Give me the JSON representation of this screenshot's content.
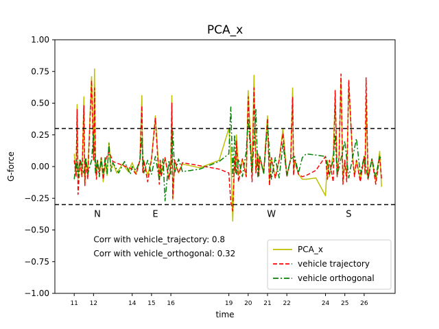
{
  "chart_data": {
    "type": "line",
    "title": "PCA_x",
    "xlabel": "time",
    "ylabel": "G-force",
    "xlim": [
      10.0,
      27.6
    ],
    "ylim": [
      -1.0,
      1.0
    ],
    "x_ticks": [
      11,
      12,
      14,
      15,
      16,
      19,
      20,
      21,
      22,
      24,
      25,
      26
    ],
    "y_ticks": [
      -1.0,
      -0.75,
      -0.5,
      -0.25,
      0.0,
      0.25,
      0.5,
      0.75,
      1.0
    ],
    "y_tick_labels": [
      "−1.00",
      "−0.75",
      "−0.50",
      "−0.25",
      "0.00",
      "0.25",
      "0.50",
      "0.75",
      "1.00"
    ],
    "grid": false,
    "legend_position": "bottom-right",
    "hlines": [
      {
        "y": 0.3,
        "style": "dashed",
        "color": "#000000"
      },
      {
        "y": -0.3,
        "style": "dashed",
        "color": "#000000"
      }
    ],
    "region_labels": [
      {
        "text": "N",
        "x": 12.2,
        "y": -0.37
      },
      {
        "text": "E",
        "x": 15.2,
        "y": -0.37
      },
      {
        "text": "W",
        "x": 21.2,
        "y": -0.37
      },
      {
        "text": "S",
        "x": 25.2,
        "y": -0.37
      }
    ],
    "annotations": [
      {
        "text": "Corr with vehicle_trajectory: 0.8",
        "x": 12.0,
        "y": -0.57
      },
      {
        "text": "Corr with vehicle_orthogonal: 0.32",
        "x": 12.0,
        "y": -0.68
      }
    ],
    "series": [
      {
        "name": "PCA_x",
        "color": "#bfbf00",
        "style": "solid",
        "x": [
          11.0,
          11.1,
          11.15,
          11.2,
          11.3,
          11.4,
          11.5,
          11.55,
          11.6,
          11.7,
          11.9,
          12.0,
          12.05,
          12.1,
          12.15,
          12.2,
          12.3,
          12.4,
          12.5,
          12.6,
          12.7,
          12.8,
          12.9,
          13.0,
          13.2,
          13.5,
          13.8,
          14.0,
          14.2,
          14.4,
          14.5,
          14.55,
          14.6,
          14.8,
          15.0,
          15.2,
          15.4,
          15.45,
          15.5,
          15.7,
          15.9,
          16.0,
          16.05,
          16.1,
          16.2,
          16.4,
          16.6,
          17.5,
          18.5,
          19.0,
          19.1,
          19.2,
          19.3,
          19.35,
          19.4,
          19.5,
          19.7,
          19.9,
          20.0,
          20.2,
          20.3,
          20.4,
          20.5,
          20.55,
          20.6,
          20.8,
          21.0,
          21.1,
          21.2,
          21.4,
          21.6,
          21.8,
          22.0,
          22.2,
          22.3,
          22.35,
          22.4,
          22.6,
          22.8,
          23.0,
          23.5,
          24.0,
          24.1,
          24.2,
          24.4,
          24.5,
          24.6,
          24.7,
          24.8,
          24.9,
          25.0,
          25.1,
          25.2,
          25.4,
          25.5,
          25.6,
          25.8,
          26.0,
          26.05,
          26.1,
          26.2,
          26.4,
          26.6,
          26.8,
          26.9
        ],
        "values": [
          0.1,
          -0.05,
          0.49,
          -0.1,
          0.05,
          -0.08,
          0.55,
          -0.15,
          0.06,
          -0.05,
          0.71,
          0.05,
          0.77,
          0.02,
          -0.08,
          0.05,
          -0.04,
          0.07,
          -0.12,
          0.04,
          -0.07,
          0.19,
          -0.02,
          0.03,
          -0.05,
          0.02,
          -0.04,
          0.03,
          -0.06,
          0.05,
          0.56,
          -0.04,
          0.05,
          -0.07,
          0.06,
          0.4,
          -0.08,
          0.05,
          -0.06,
          0.07,
          -0.1,
          0.03,
          0.56,
          -0.26,
          0.05,
          -0.05,
          0.02,
          -0.01,
          0.05,
          0.3,
          0.1,
          -0.43,
          0.08,
          -0.05,
          0.25,
          -0.07,
          0.06,
          -0.08,
          0.6,
          -0.05,
          0.72,
          -0.04,
          0.1,
          -0.06,
          0.08,
          -0.05,
          0.4,
          -0.12,
          0.07,
          -0.09,
          0.05,
          0.3,
          -0.07,
          0.06,
          0.62,
          -0.05,
          0.05,
          -0.06,
          -0.1,
          -0.1,
          -0.09,
          -0.23,
          0.05,
          -0.08,
          0.1,
          0.55,
          -0.05,
          0.08,
          0.7,
          -0.12,
          0.05,
          -0.08,
          0.65,
          0.07,
          -0.06,
          0.05,
          -0.1,
          0.08,
          -0.06,
          0.55,
          -0.08,
          0.06,
          -0.12,
          0.12,
          -0.16
        ]
      },
      {
        "name": "vehicle trajectory",
        "color": "#ff0000",
        "style": "dashed",
        "x": [
          11.0,
          11.1,
          11.15,
          11.2,
          11.3,
          11.4,
          11.5,
          11.55,
          11.6,
          11.7,
          11.9,
          12.0,
          12.05,
          12.1,
          12.15,
          12.2,
          12.3,
          12.4,
          12.5,
          12.6,
          12.8,
          13.0,
          14.0,
          14.2,
          14.4,
          14.5,
          14.55,
          14.6,
          14.8,
          15.0,
          15.2,
          15.4,
          15.45,
          15.5,
          15.7,
          15.9,
          16.0,
          16.05,
          16.1,
          16.2,
          16.4,
          16.6,
          17.0,
          18.5,
          19.0,
          19.1,
          19.2,
          19.3,
          19.35,
          19.4,
          19.5,
          19.7,
          19.9,
          20.0,
          20.2,
          20.3,
          20.4,
          20.5,
          20.55,
          20.6,
          20.8,
          21.0,
          21.1,
          21.2,
          21.4,
          21.6,
          21.8,
          22.0,
          22.2,
          22.3,
          22.35,
          22.4,
          22.6,
          22.8,
          23.0,
          23.5,
          24.0,
          24.1,
          24.2,
          24.4,
          24.5,
          24.6,
          24.7,
          24.8,
          24.9,
          25.0,
          25.1,
          25.2,
          25.4,
          25.5,
          25.6,
          25.8,
          26.0,
          26.05,
          26.1,
          26.2,
          26.4,
          26.6,
          26.8,
          26.9
        ],
        "values": [
          0.05,
          -0.08,
          0.45,
          -0.22,
          0.05,
          -0.08,
          0.48,
          -0.15,
          0.06,
          -0.1,
          0.68,
          0.05,
          0.62,
          0.02,
          -0.1,
          0.05,
          -0.06,
          0.07,
          -0.1,
          0.04,
          0.12,
          0.04,
          -0.02,
          -0.06,
          0.05,
          0.48,
          -0.05,
          0.05,
          -0.12,
          0.06,
          0.38,
          -0.14,
          0.05,
          -0.08,
          0.07,
          -0.1,
          0.03,
          0.5,
          -0.25,
          0.05,
          -0.05,
          0.03,
          0.02,
          -0.02,
          -0.05,
          -0.28,
          -0.35,
          0.08,
          -0.05,
          0.2,
          -0.12,
          0.06,
          -0.08,
          0.55,
          -0.12,
          0.62,
          -0.05,
          0.1,
          -0.08,
          0.08,
          -0.05,
          0.38,
          -0.15,
          0.07,
          -0.09,
          0.05,
          0.26,
          -0.08,
          0.06,
          0.55,
          -0.07,
          0.05,
          -0.06,
          -0.08,
          -0.07,
          -0.03,
          0.08,
          -0.1,
          0.05,
          -0.12,
          0.6,
          -0.08,
          0.08,
          0.73,
          -0.14,
          0.05,
          -0.12,
          0.68,
          0.07,
          -0.08,
          0.05,
          -0.12,
          0.08,
          -0.06,
          0.7,
          -0.1,
          0.06,
          -0.14,
          0.08,
          -0.1
        ]
      },
      {
        "name": "vehicle orthogonal",
        "color": "#008000",
        "style": "dashdot",
        "x": [
          11.0,
          11.1,
          11.2,
          11.3,
          11.5,
          11.6,
          11.7,
          11.9,
          12.0,
          12.1,
          12.2,
          12.3,
          12.4,
          12.5,
          12.6,
          12.7,
          12.8,
          12.9,
          13.0,
          13.3,
          13.6,
          13.9,
          14.0,
          14.2,
          14.4,
          14.5,
          14.6,
          14.8,
          15.0,
          15.2,
          15.4,
          15.6,
          15.7,
          15.9,
          16.0,
          16.1,
          16.2,
          16.4,
          16.6,
          17.5,
          18.5,
          19.0,
          19.1,
          19.2,
          19.3,
          19.4,
          19.5,
          19.7,
          19.9,
          20.0,
          20.2,
          20.4,
          20.5,
          20.6,
          20.8,
          21.0,
          21.2,
          21.4,
          21.6,
          21.8,
          22.0,
          22.2,
          22.4,
          22.6,
          22.8,
          23.0,
          23.5,
          24.0,
          24.2,
          24.4,
          24.5,
          24.6,
          24.8,
          25.0,
          25.2,
          25.4,
          25.6,
          25.8,
          26.0,
          26.2,
          26.4,
          26.6,
          26.8,
          26.9
        ],
        "values": [
          -0.1,
          0.05,
          -0.08,
          0.06,
          -0.05,
          0.07,
          -0.06,
          0.05,
          0.26,
          -0.05,
          0.05,
          -0.08,
          0.06,
          -0.05,
          0.07,
          -0.06,
          0.18,
          -0.04,
          0.03,
          -0.05,
          0.04,
          -0.06,
          0.0,
          -0.03,
          0.05,
          0.23,
          -0.05,
          0.05,
          -0.06,
          0.08,
          -0.1,
          0.06,
          -0.27,
          0.05,
          -0.06,
          0.28,
          -0.05,
          0.06,
          -0.04,
          -0.02,
          0.04,
          0.1,
          0.47,
          -0.08,
          0.25,
          -0.06,
          0.06,
          -0.08,
          0.12,
          0.38,
          -0.05,
          0.45,
          -0.08,
          0.08,
          -0.06,
          0.33,
          -0.1,
          0.07,
          -0.09,
          0.18,
          -0.07,
          0.06,
          0.08,
          -0.05,
          0.07,
          0.1,
          0.09,
          0.08,
          -0.06,
          0.05,
          0.25,
          -0.07,
          0.06,
          0.2,
          -0.09,
          0.07,
          0.22,
          -0.06,
          0.08,
          -0.1,
          0.06,
          -0.08,
          0.08,
          0.05
        ]
      }
    ]
  }
}
